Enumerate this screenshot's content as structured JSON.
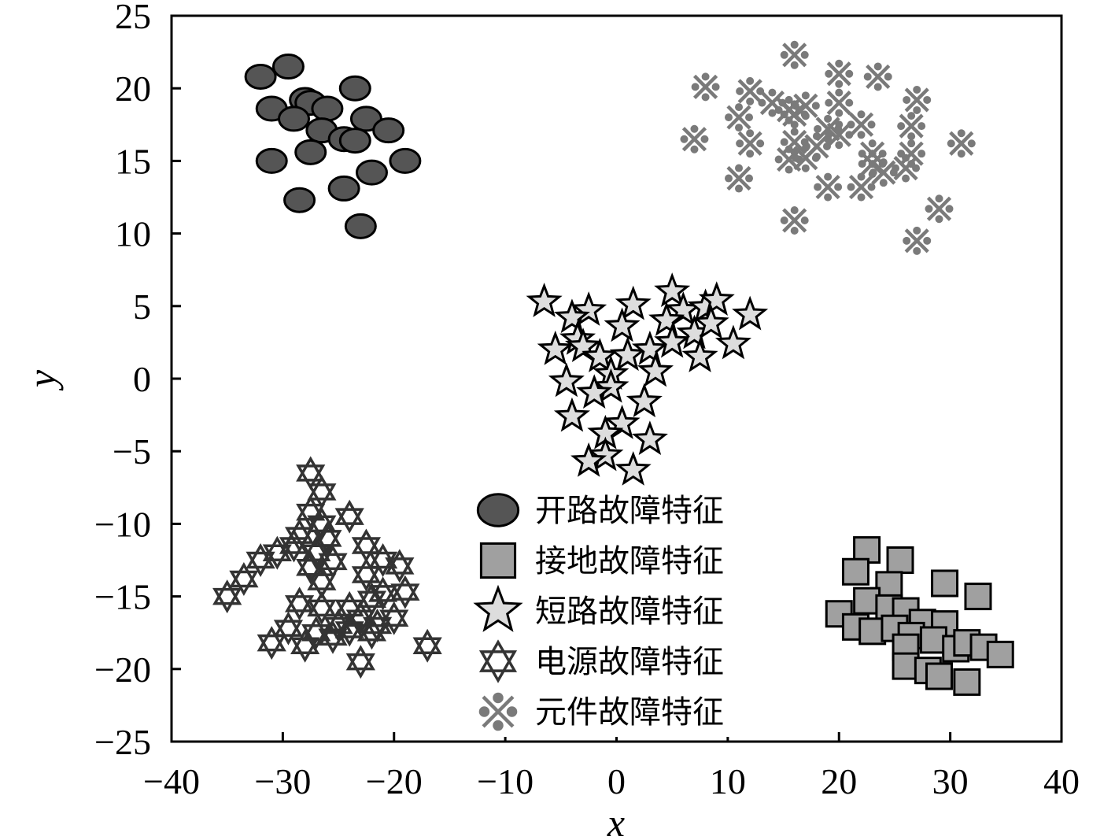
{
  "chart_data": {
    "type": "scatter",
    "title": "",
    "xlabel": "x",
    "ylabel": "y",
    "xlim": [
      -40,
      40
    ],
    "ylim": [
      -25,
      25
    ],
    "xticks": [
      -40,
      -30,
      -20,
      -10,
      0,
      10,
      20,
      30,
      40
    ],
    "yticks": [
      -25,
      -20,
      -15,
      -10,
      -5,
      0,
      5,
      10,
      15,
      20,
      25
    ],
    "grid": false,
    "legend_position": "center-bottom",
    "series": [
      {
        "name": "开路故障特征",
        "marker": "circle",
        "color": "#555555",
        "points": [
          [
            -32,
            20.8
          ],
          [
            -29.5,
            21.5
          ],
          [
            -23.5,
            20
          ],
          [
            -31,
            18.6
          ],
          [
            -28,
            19.2
          ],
          [
            -27.5,
            19
          ],
          [
            -26,
            18.6
          ],
          [
            -29,
            17.9
          ],
          [
            -26.5,
            17.1
          ],
          [
            -22.5,
            17.9
          ],
          [
            -20.5,
            17.1
          ],
          [
            -24.5,
            16.5
          ],
          [
            -23.5,
            16.4
          ],
          [
            -27.5,
            15.6
          ],
          [
            -31,
            15
          ],
          [
            -19,
            15
          ],
          [
            -22,
            14.2
          ],
          [
            -24.5,
            13.1
          ],
          [
            -28.5,
            12.3
          ],
          [
            -23,
            10.5
          ]
        ]
      },
      {
        "name": "接地故障特征",
        "marker": "square",
        "color": "#a0a0a0",
        "points": [
          [
            22.5,
            -11.8
          ],
          [
            21.5,
            -13.3
          ],
          [
            25.5,
            -12.5
          ],
          [
            29.5,
            -14.1
          ],
          [
            24.5,
            -14.2
          ],
          [
            32.5,
            -15
          ],
          [
            22.5,
            -15.3
          ],
          [
            20,
            -16.2
          ],
          [
            24.5,
            -15.8
          ],
          [
            26,
            -16
          ],
          [
            27.5,
            -16.8
          ],
          [
            21.5,
            -17.1
          ],
          [
            23,
            -17.4
          ],
          [
            25,
            -17.2
          ],
          [
            26.5,
            -17.7
          ],
          [
            29.5,
            -16.9
          ],
          [
            28.5,
            -18
          ],
          [
            30.5,
            -18.6
          ],
          [
            31.5,
            -18.2
          ],
          [
            26,
            -18.5
          ],
          [
            33,
            -18.5
          ],
          [
            34.5,
            -19
          ],
          [
            26,
            -19.8
          ],
          [
            28,
            -20.1
          ],
          [
            29,
            -20.5
          ],
          [
            31.5,
            -20.9
          ]
        ]
      },
      {
        "name": "短路故障特征",
        "marker": "star",
        "color": "#dddddd",
        "points": [
          [
            -6.5,
            5.3
          ],
          [
            -2.5,
            4.7
          ],
          [
            -4,
            4.2
          ],
          [
            1.5,
            5.1
          ],
          [
            5,
            6
          ],
          [
            6,
            4.7
          ],
          [
            8,
            4.9
          ],
          [
            9,
            5.4
          ],
          [
            12,
            4.4
          ],
          [
            0.5,
            3.6
          ],
          [
            4.5,
            4
          ],
          [
            7,
            3.1
          ],
          [
            8.5,
            3.8
          ],
          [
            -3.5,
            2.7
          ],
          [
            -5.5,
            2
          ],
          [
            -3,
            2.2
          ],
          [
            -1.5,
            1.5
          ],
          [
            1,
            1.6
          ],
          [
            3,
            2
          ],
          [
            5,
            2.5
          ],
          [
            7.5,
            1.5
          ],
          [
            10.5,
            2.4
          ],
          [
            -0.5,
            0.3
          ],
          [
            3.5,
            0.5
          ],
          [
            -4.5,
            -0.2
          ],
          [
            -0.5,
            -0.6
          ],
          [
            -2,
            -1
          ],
          [
            2.5,
            -1.6
          ],
          [
            -4,
            -2.6
          ],
          [
            0.5,
            -3.1
          ],
          [
            -1,
            -3.8
          ],
          [
            3,
            -4.2
          ],
          [
            -1,
            -5.3
          ],
          [
            -2.5,
            -5.7
          ],
          [
            1.5,
            -6.3
          ]
        ]
      },
      {
        "name": "电源故障特征",
        "marker": "hexagram",
        "color": "#ffffff",
        "points": [
          [
            -27.5,
            -6.5
          ],
          [
            -26.5,
            -7.8
          ],
          [
            -24,
            -9.5
          ],
          [
            -27.5,
            -9.2
          ],
          [
            -26.5,
            -10
          ],
          [
            -28.5,
            -10.8
          ],
          [
            -29,
            -11.5
          ],
          [
            -26,
            -11
          ],
          [
            -27,
            -12
          ],
          [
            -25.5,
            -12.6
          ],
          [
            -22.5,
            -11.5
          ],
          [
            -21,
            -12.5
          ],
          [
            -19.5,
            -12.9
          ],
          [
            -22.5,
            -13.5
          ],
          [
            -30.5,
            -12
          ],
          [
            -32,
            -12.5
          ],
          [
            -33.5,
            -13.8
          ],
          [
            -27.5,
            -13
          ],
          [
            -26.5,
            -14
          ],
          [
            -21,
            -14.8
          ],
          [
            -22,
            -15.2
          ],
          [
            -19,
            -14.7
          ],
          [
            -35,
            -15
          ],
          [
            -28.5,
            -15.5
          ],
          [
            -26.5,
            -15.8
          ],
          [
            -24,
            -15.8
          ],
          [
            -23,
            -16.5
          ],
          [
            -20,
            -16.5
          ],
          [
            -25,
            -17
          ],
          [
            -24,
            -17.3
          ],
          [
            -27,
            -17.5
          ],
          [
            -29.5,
            -17.2
          ],
          [
            -25.5,
            -17.8
          ],
          [
            -22,
            -17.5
          ],
          [
            -31,
            -18.2
          ],
          [
            -28,
            -18.4
          ],
          [
            -23,
            -19.5
          ],
          [
            -17,
            -18.4
          ],
          [
            -21.5,
            -17
          ]
        ]
      },
      {
        "name": "元件故障特征",
        "marker": "asterisk-dots",
        "color": "#7a7a7a",
        "points": [
          [
            8,
            20.1
          ],
          [
            16,
            22.3
          ],
          [
            20,
            21
          ],
          [
            23.5,
            20.8
          ],
          [
            12,
            19.8
          ],
          [
            14,
            19
          ],
          [
            15.5,
            18.5
          ],
          [
            17,
            18.8
          ],
          [
            20,
            19
          ],
          [
            27,
            19.2
          ],
          [
            11,
            18
          ],
          [
            16,
            18.2
          ],
          [
            19,
            17.2
          ],
          [
            22,
            17.5
          ],
          [
            26.5,
            17.4
          ],
          [
            7,
            16.5
          ],
          [
            12,
            16.2
          ],
          [
            16,
            16.3
          ],
          [
            18,
            16
          ],
          [
            20,
            16.8
          ],
          [
            23,
            15.5
          ],
          [
            26.5,
            15.5
          ],
          [
            31,
            16.2
          ],
          [
            15.5,
            15.1
          ],
          [
            17,
            15.2
          ],
          [
            23,
            14.8
          ],
          [
            11,
            13.8
          ],
          [
            22,
            13.2
          ],
          [
            24,
            14.2
          ],
          [
            26,
            14.5
          ],
          [
            19,
            13.2
          ],
          [
            29,
            11.7
          ],
          [
            16,
            10.9
          ],
          [
            27,
            9.5
          ]
        ]
      }
    ]
  }
}
